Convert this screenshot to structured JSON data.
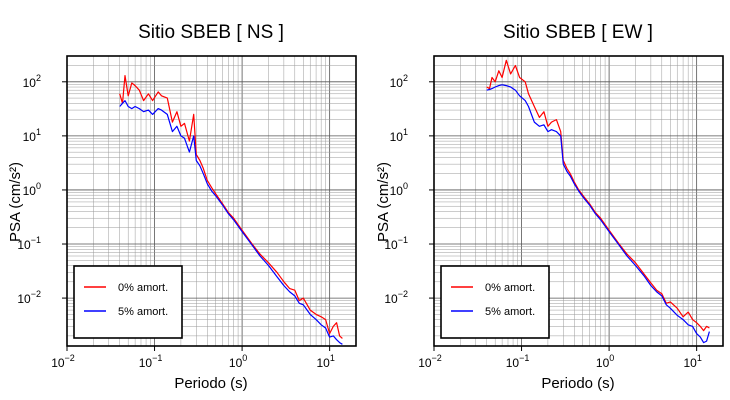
{
  "chart_data": [
    {
      "type": "line",
      "title": "Sitio SBEB [ NS ]",
      "xlabel": "Periodo (s)",
      "ylabel": "PSA (cm/s²)",
      "xscale": "log",
      "yscale": "log",
      "xlim": [
        0.01,
        20
      ],
      "ylim": [
        0.0013,
        300
      ],
      "grid": true,
      "legend_position": "bottom-left",
      "xticks": [
        {
          "v": 0.01,
          "base": "10",
          "exp": "−2"
        },
        {
          "v": 0.1,
          "base": "10",
          "exp": "−1"
        },
        {
          "v": 1,
          "base": "10",
          "exp": "0"
        },
        {
          "v": 10,
          "base": "10",
          "exp": "1"
        }
      ],
      "yticks": [
        {
          "v": 100,
          "base": "10",
          "exp": "2"
        },
        {
          "v": 10,
          "base": "10",
          "exp": "1"
        },
        {
          "v": 1,
          "base": "10",
          "exp": "0"
        },
        {
          "v": 0.1,
          "base": "10",
          "exp": "−1"
        },
        {
          "v": 0.01,
          "base": "10",
          "exp": "−2"
        }
      ],
      "series": [
        {
          "name": "0% amort.",
          "color": "#ff0000",
          "x": [
            0.04,
            0.043,
            0.046,
            0.05,
            0.055,
            0.06,
            0.067,
            0.075,
            0.085,
            0.095,
            0.11,
            0.12,
            0.14,
            0.16,
            0.18,
            0.2,
            0.22,
            0.25,
            0.28,
            0.3,
            0.33,
            0.36,
            0.4,
            0.45,
            0.5,
            0.6,
            0.7,
            0.8,
            1.0,
            1.3,
            1.6,
            2.0,
            2.5,
            3.0,
            3.5,
            4.0,
            4.5,
            5.0,
            6.0,
            7.0,
            8.0,
            9.0,
            10,
            11,
            12,
            13,
            14
          ],
          "y": [
            60,
            40,
            130,
            55,
            95,
            85,
            70,
            45,
            60,
            45,
            65,
            55,
            50,
            18,
            28,
            15,
            17,
            8,
            25,
            4.5,
            3.5,
            2.5,
            1.5,
            1.1,
            0.85,
            0.55,
            0.38,
            0.3,
            0.18,
            0.1,
            0.065,
            0.045,
            0.03,
            0.02,
            0.015,
            0.014,
            0.009,
            0.01,
            0.006,
            0.005,
            0.0045,
            0.004,
            0.0022,
            0.003,
            0.0035,
            0.002,
            0.0018
          ]
        },
        {
          "name": "5% amort.",
          "color": "#0000ff",
          "x": [
            0.04,
            0.043,
            0.046,
            0.05,
            0.055,
            0.06,
            0.067,
            0.075,
            0.085,
            0.095,
            0.11,
            0.12,
            0.14,
            0.16,
            0.18,
            0.2,
            0.22,
            0.25,
            0.28,
            0.3,
            0.33,
            0.36,
            0.4,
            0.45,
            0.5,
            0.6,
            0.7,
            0.8,
            1.0,
            1.3,
            1.6,
            2.0,
            2.5,
            3.0,
            3.5,
            4.0,
            4.5,
            5.0,
            6.0,
            7.0,
            8.0,
            9.0,
            10,
            11,
            12,
            13,
            14
          ],
          "y": [
            35,
            40,
            45,
            35,
            32,
            35,
            32,
            28,
            30,
            25,
            32,
            30,
            25,
            12,
            15,
            10,
            9,
            5,
            10,
            3.5,
            2.8,
            2.0,
            1.3,
            0.95,
            0.78,
            0.52,
            0.36,
            0.28,
            0.17,
            0.095,
            0.06,
            0.04,
            0.025,
            0.017,
            0.013,
            0.011,
            0.008,
            0.0075,
            0.005,
            0.004,
            0.0032,
            0.0028,
            0.0019,
            0.002,
            0.0017,
            0.0015,
            0.0014
          ]
        }
      ]
    },
    {
      "type": "line",
      "title": "Sitio SBEB [ EW ]",
      "xlabel": "Periodo (s)",
      "ylabel": "PSA (cm/s²)",
      "xscale": "log",
      "yscale": "log",
      "xlim": [
        0.01,
        20
      ],
      "ylim": [
        0.0013,
        300
      ],
      "grid": true,
      "legend_position": "bottom-left",
      "xticks": [
        {
          "v": 0.01,
          "base": "10",
          "exp": "−2"
        },
        {
          "v": 0.1,
          "base": "10",
          "exp": "−1"
        },
        {
          "v": 1,
          "base": "10",
          "exp": "0"
        },
        {
          "v": 10,
          "base": "10",
          "exp": "1"
        }
      ],
      "yticks": [
        {
          "v": 100,
          "base": "10",
          "exp": "2"
        },
        {
          "v": 10,
          "base": "10",
          "exp": "1"
        },
        {
          "v": 1,
          "base": "10",
          "exp": "0"
        },
        {
          "v": 0.1,
          "base": "10",
          "exp": "−1"
        },
        {
          "v": 0.01,
          "base": "10",
          "exp": "−2"
        }
      ],
      "series": [
        {
          "name": "0% amort.",
          "color": "#ff0000",
          "x": [
            0.04,
            0.043,
            0.046,
            0.05,
            0.055,
            0.06,
            0.067,
            0.075,
            0.085,
            0.095,
            0.11,
            0.12,
            0.14,
            0.16,
            0.18,
            0.2,
            0.22,
            0.25,
            0.28,
            0.3,
            0.33,
            0.36,
            0.4,
            0.45,
            0.5,
            0.6,
            0.7,
            0.8,
            1.0,
            1.3,
            1.6,
            2.0,
            2.5,
            3.0,
            3.5,
            4.0,
            4.5,
            5.0,
            6.0,
            7.0,
            8.0,
            9.0,
            10,
            11,
            12,
            13,
            14
          ],
          "y": [
            80,
            75,
            120,
            100,
            160,
            120,
            250,
            140,
            200,
            120,
            100,
            60,
            35,
            22,
            28,
            15,
            18,
            20,
            12,
            3.5,
            2.5,
            2.0,
            1.4,
            1.0,
            0.8,
            0.55,
            0.38,
            0.3,
            0.18,
            0.1,
            0.065,
            0.045,
            0.028,
            0.019,
            0.014,
            0.012,
            0.008,
            0.0085,
            0.0065,
            0.0045,
            0.0055,
            0.004,
            0.0035,
            0.003,
            0.0025,
            0.003,
            0.0028
          ]
        },
        {
          "name": "5% amort.",
          "color": "#0000ff",
          "x": [
            0.04,
            0.043,
            0.046,
            0.05,
            0.055,
            0.06,
            0.067,
            0.075,
            0.085,
            0.095,
            0.11,
            0.12,
            0.14,
            0.16,
            0.18,
            0.2,
            0.22,
            0.25,
            0.28,
            0.3,
            0.33,
            0.36,
            0.4,
            0.45,
            0.5,
            0.6,
            0.7,
            0.8,
            1.0,
            1.3,
            1.6,
            2.0,
            2.5,
            3.0,
            3.5,
            4.0,
            4.5,
            5.0,
            6.0,
            7.0,
            8.0,
            9.0,
            10,
            11,
            12,
            13,
            14
          ],
          "y": [
            70,
            72,
            75,
            80,
            85,
            88,
            85,
            80,
            70,
            55,
            45,
            35,
            18,
            15,
            16,
            12,
            13,
            12,
            10,
            3.0,
            2.2,
            1.8,
            1.3,
            0.95,
            0.75,
            0.52,
            0.36,
            0.28,
            0.17,
            0.095,
            0.06,
            0.04,
            0.026,
            0.017,
            0.013,
            0.011,
            0.0075,
            0.0065,
            0.0048,
            0.004,
            0.0032,
            0.003,
            0.0022,
            0.0019,
            0.0015,
            0.0016,
            0.0024
          ]
        }
      ]
    }
  ]
}
